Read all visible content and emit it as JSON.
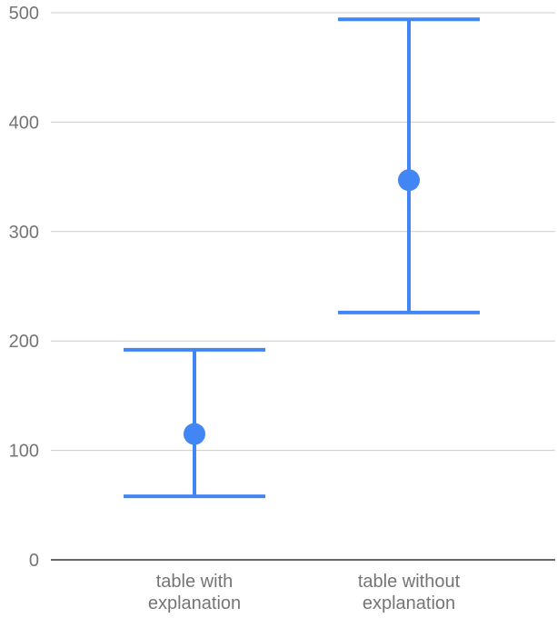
{
  "chart_data": {
    "type": "scatter",
    "title": "",
    "xlabel": "",
    "ylabel": "",
    "categories": [
      [
        "table with",
        "explanation"
      ],
      [
        "table without",
        "explanation"
      ]
    ],
    "series": [
      {
        "values": [
          115,
          347
        ],
        "error_low": [
          58,
          226
        ],
        "error_high": [
          192,
          494
        ]
      }
    ],
    "ylim": [
      0,
      500
    ],
    "yticks": [
      "0",
      "100",
      "200",
      "300",
      "400",
      "500"
    ],
    "grid": true,
    "legend": "none",
    "color": "#4285f4"
  }
}
